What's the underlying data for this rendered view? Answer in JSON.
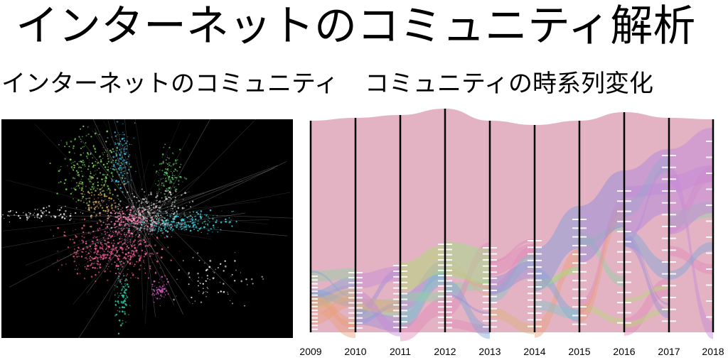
{
  "title": "インターネットのコミュニティ解析",
  "left_panel": {
    "heading": "インターネットのコミュニティ",
    "image_description_icon": "network-graph-visualization"
  },
  "right_panel": {
    "heading": "コミュニティの時系列変化"
  },
  "chart_data": {
    "type": "alluvial",
    "x_labels": [
      "2009",
      "2010",
      "2011",
      "2012",
      "2013",
      "2014",
      "2015",
      "2016",
      "2017",
      "2018"
    ],
    "community_colors": [
      "#d88aa3",
      "#e8a07a",
      "#b7d67a",
      "#8ed3a5",
      "#7fc6c9",
      "#7fa6d8",
      "#9a8fd9",
      "#c58ad9",
      "#e08ab8",
      "#d9b27a"
    ]
  }
}
